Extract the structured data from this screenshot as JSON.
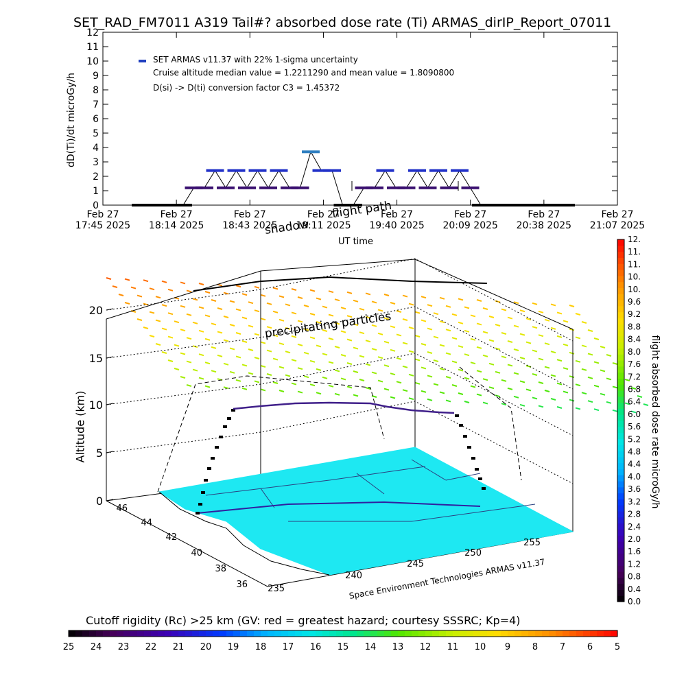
{
  "chart_data": [
    {
      "type": "line",
      "title": "SET_RAD_FM7011  A319 Tail#? absorbed dose rate (Ti) ARMAS_dirIP_Report_07011",
      "xlabel": "UT time",
      "ylabel": "dD(Ti)/dt microGy/h",
      "ylim": [
        0,
        12
      ],
      "y_ticks": [
        "0",
        "1",
        "2",
        "3",
        "4",
        "5",
        "6",
        "7",
        "8",
        "9",
        "10",
        "11",
        "12"
      ],
      "x_ticks": [
        {
          "day": "Feb 27",
          "time": "17:45 2025"
        },
        {
          "day": "Feb 27",
          "time": "18:14 2025"
        },
        {
          "day": "Feb 27",
          "time": "18:43 2025"
        },
        {
          "day": "Feb 27",
          "time": "19:11 2025"
        },
        {
          "day": "Feb 27",
          "time": "19:40 2025"
        },
        {
          "day": "Feb 27",
          "time": "20:09 2025"
        },
        {
          "day": "Feb 27",
          "time": "20:38 2025"
        },
        {
          "day": "Feb 27",
          "time": "21:07 2025"
        }
      ],
      "legend": {
        "placement": "top-left",
        "entry": "SET ARMAS v11.37 with 22% 1-sigma uncertainty",
        "line2": "Cruise altitude median value = 1.2211290 and mean value = 1.8090800",
        "line3": "D(si) -> D(ti) conversion factor C3 = 1.45372"
      },
      "series": [
        {
          "name": "SET ARMAS v11.37 with 22% 1-sigma uncertainty",
          "color": "#2040c0",
          "x_minutes": [
            0,
            5,
            10,
            15,
            20,
            25,
            30,
            35,
            40,
            45,
            50,
            55,
            60,
            65,
            70,
            75,
            80,
            85,
            90,
            95,
            100,
            105,
            110,
            115,
            120,
            125,
            130,
            135,
            140,
            145,
            150,
            155,
            160,
            165,
            170,
            175,
            180,
            185,
            190,
            195,
            200
          ],
          "values": [
            0,
            0,
            0,
            0,
            0,
            1.2,
            1.2,
            2.4,
            1.2,
            2.4,
            1.2,
            2.4,
            1.2,
            2.4,
            1.2,
            1.2,
            3.7,
            2.4,
            2.4,
            0,
            0,
            1.2,
            1.2,
            2.4,
            1.2,
            1.2,
            2.4,
            1.2,
            2.4,
            1.2,
            2.4,
            1.2,
            0,
            0,
            0,
            0,
            0,
            0,
            0,
            0,
            0
          ]
        }
      ]
    },
    {
      "type": "scatter",
      "title": "",
      "zlabel": "Altitude (km)",
      "z_ticks": [
        "0",
        "5",
        "10",
        "15",
        "20"
      ],
      "lat_ticks": [
        "36",
        "38",
        "40",
        "42",
        "44",
        "46"
      ],
      "lon_ticks": [
        "235",
        "240",
        "245",
        "250",
        "255"
      ],
      "annotations": [
        "shadow",
        "flight path",
        "precipitating particles"
      ],
      "credit": "Space Environment Technologies ARMAS v11.37",
      "colorbar": {
        "label": "flight absorbed dose rate microGy/h",
        "range": [
          0,
          12
        ],
        "ticks": [
          "0.0",
          "0.4",
          "0.8",
          "1.2",
          "1.6",
          "2.0",
          "2.4",
          "2.8",
          "3.2",
          "3.6",
          "4.0",
          "4.4",
          "4.8",
          "5.2",
          "5.6",
          "6.0",
          "6.4",
          "6.8",
          "7.2",
          "7.6",
          "8.0",
          "8.4",
          "8.8",
          "9.2",
          "9.6",
          "10.",
          "10.",
          "11.",
          "11.",
          "12."
        ]
      },
      "rigidity_bar": {
        "label": "Cutoff rigidity (Rc) >25 km (GV: red = greatest hazard; courtesy SSSRC; Kp=4)",
        "ticks": [
          "25",
          "24",
          "23",
          "22",
          "21",
          "20",
          "19",
          "18",
          "17",
          "16",
          "15",
          "14",
          "13",
          "12",
          "11",
          "10",
          "9",
          "8",
          "7",
          "6",
          "5"
        ]
      }
    }
  ]
}
